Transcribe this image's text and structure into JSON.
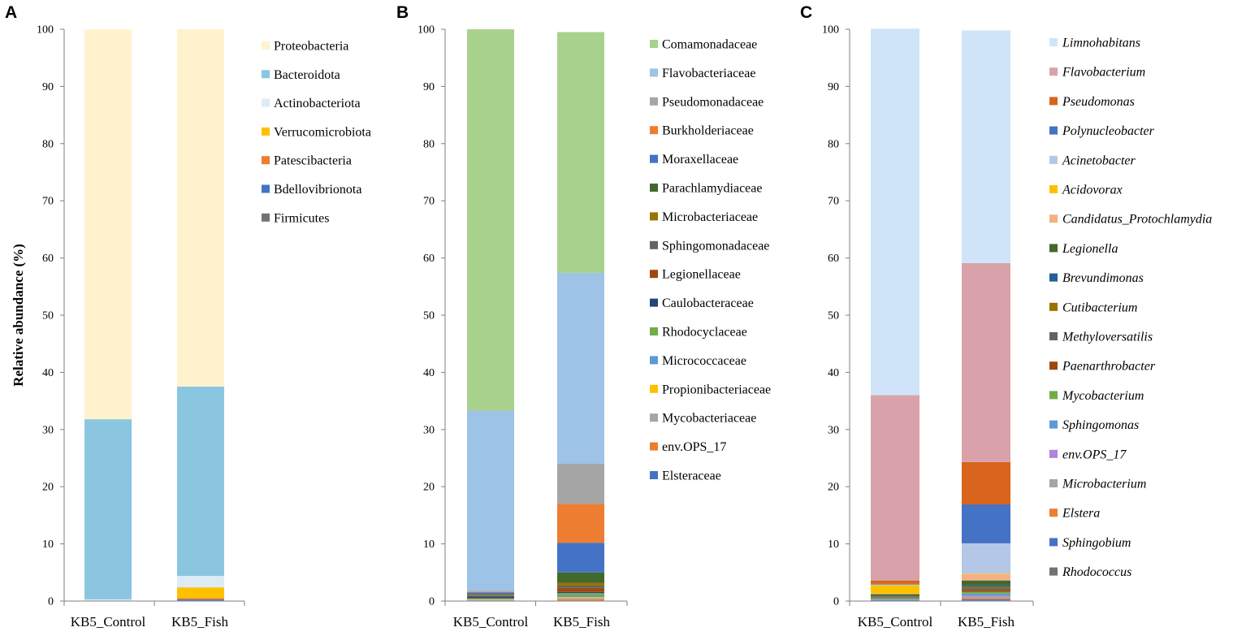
{
  "chart_data": [
    {
      "type": "bar",
      "stacked": true,
      "panel_letter": "A",
      "ylabel": "Relative abundance (%)",
      "ylim": [
        0,
        100
      ],
      "yticks": [
        "0",
        "10",
        "20",
        "30",
        "40",
        "50",
        "60",
        "70",
        "80",
        "90",
        "100"
      ],
      "categories": [
        "KB5_Control",
        "KB5_Fish"
      ],
      "legend_italic": false,
      "series": [
        {
          "name": "Firmicutes",
          "color": "#737373",
          "values": [
            0.0,
            0.1
          ]
        },
        {
          "name": "Bdellovibrionota",
          "color": "#4472c4",
          "values": [
            0.0,
            0.2
          ]
        },
        {
          "name": "Patescibacteria",
          "color": "#ed7d31",
          "values": [
            0.0,
            0.2
          ]
        },
        {
          "name": "Verrucomicrobiota",
          "color": "#ffc000",
          "values": [
            0.0,
            1.9
          ]
        },
        {
          "name": "Actinobacteriota",
          "color": "#ddebf7",
          "values": [
            0.3,
            2.0
          ]
        },
        {
          "name": "Bacteroidota",
          "color": "#8ac6e0",
          "values": [
            31.5,
            33.1
          ]
        },
        {
          "name": "Proteobacteria",
          "color": "#fff2cc",
          "values": [
            68.2,
            62.5
          ]
        }
      ]
    },
    {
      "type": "bar",
      "stacked": true,
      "panel_letter": "B",
      "ylim": [
        0,
        100
      ],
      "yticks": [
        "0",
        "10",
        "20",
        "30",
        "40",
        "50",
        "60",
        "70",
        "80",
        "90",
        "100"
      ],
      "categories": [
        "KB5_Control",
        "KB5_Fish"
      ],
      "legend_italic": false,
      "series": [
        {
          "name": "Elsteraceae",
          "color": "#4472c4",
          "values": [
            0.1,
            0.1
          ]
        },
        {
          "name": "env.OPS_17",
          "color": "#ed7d31",
          "values": [
            0.0,
            0.2
          ]
        },
        {
          "name": "Mycobacteriaceae",
          "color": "#a5a5a5",
          "values": [
            0.1,
            0.2
          ]
        },
        {
          "name": "Propionibacteriaceae",
          "color": "#ffc000",
          "values": [
            0.1,
            0.2
          ]
        },
        {
          "name": "Micrococcaceae",
          "color": "#5b9bd5",
          "values": [
            0.1,
            0.3
          ]
        },
        {
          "name": "Rhodocyclaceae",
          "color": "#70ad47",
          "values": [
            0.1,
            0.4
          ]
        },
        {
          "name": "Caulobacteraceae",
          "color": "#264478",
          "values": [
            0.3,
            0.2
          ]
        },
        {
          "name": "Legionellaceae",
          "color": "#9e480e",
          "values": [
            0.1,
            0.7
          ]
        },
        {
          "name": "Sphingomonadaceae",
          "color": "#636363",
          "values": [
            0.1,
            0.4
          ]
        },
        {
          "name": "Microbacteriaceae",
          "color": "#997300",
          "values": [
            0.1,
            0.5
          ]
        },
        {
          "name": "Parachlamydiaceae",
          "color": "#43682b",
          "values": [
            0.1,
            1.8
          ]
        },
        {
          "name": "Moraxellaceae",
          "color": "#4472c4",
          "values": [
            0.3,
            5.2
          ]
        },
        {
          "name": "Burkholderiaceae",
          "color": "#ed7d31",
          "values": [
            0.1,
            6.8
          ]
        },
        {
          "name": "Pseudomonadaceae",
          "color": "#a5a5a5",
          "values": [
            0.2,
            7.0
          ]
        },
        {
          "name": "Flavobacteriaceae",
          "color": "#9dc3e6",
          "values": [
            31.5,
            33.4
          ]
        },
        {
          "name": "Comamonadaceae",
          "color": "#a9d18e",
          "values": [
            66.7,
            42.1
          ]
        }
      ]
    },
    {
      "type": "bar",
      "stacked": true,
      "panel_letter": "C",
      "ylim": [
        0,
        100
      ],
      "yticks": [
        "0",
        "10",
        "20",
        "30",
        "40",
        "50",
        "60",
        "70",
        "80",
        "90",
        "100"
      ],
      "categories": [
        "KB5_Control",
        "KB5_Fish"
      ],
      "legend_italic": true,
      "series": [
        {
          "name": "Rhodococcus",
          "color": "#737373",
          "values": [
            0.1,
            0.1
          ]
        },
        {
          "name": "Sphingobium",
          "color": "#4472c4",
          "values": [
            0.1,
            0.2
          ]
        },
        {
          "name": "Elstera",
          "color": "#ed7d31",
          "values": [
            0.0,
            0.2
          ]
        },
        {
          "name": "Microbacterium",
          "color": "#a5a5a5",
          "values": [
            0.1,
            0.3
          ]
        },
        {
          "name": "env.OPS_17",
          "color": "#b084d6",
          "values": [
            0.0,
            0.2
          ]
        },
        {
          "name": "Sphingomonas",
          "color": "#5b9bd5",
          "values": [
            0.1,
            0.3
          ]
        },
        {
          "name": "Mycobacterium",
          "color": "#70ad47",
          "values": [
            0.1,
            0.3
          ]
        },
        {
          "name": "Paenarthrobacter",
          "color": "#9e480e",
          "values": [
            0.1,
            0.3
          ]
        },
        {
          "name": "Methyloversatilis",
          "color": "#636363",
          "values": [
            0.1,
            0.3
          ]
        },
        {
          "name": "Cutibacterium",
          "color": "#997300",
          "values": [
            0.1,
            0.3
          ]
        },
        {
          "name": "Brevundimonas",
          "color": "#255e91",
          "values": [
            0.1,
            0.3
          ]
        },
        {
          "name": "Legionella",
          "color": "#43682b",
          "values": [
            0.3,
            0.8
          ]
        },
        {
          "name": "Candidatus_Protochlamydia",
          "color": "#f4b183",
          "values": [
            0.1,
            1.1
          ]
        },
        {
          "name": "Acidovorax",
          "color": "#ffc000",
          "values": [
            1.5,
            0.1
          ]
        },
        {
          "name": "Acinetobacter",
          "color": "#b4c7e7",
          "values": [
            0.1,
            5.3
          ]
        },
        {
          "name": "Polynucleobacter",
          "color": "#4472c4",
          "values": [
            0.1,
            6.8
          ]
        },
        {
          "name": "Pseudomonas",
          "color": "#d9641c",
          "values": [
            0.6,
            7.4
          ]
        },
        {
          "name": "Flavobacterium",
          "color": "#d9a2aa",
          "values": [
            32.4,
            34.8
          ]
        },
        {
          "name": "Limnohabitans",
          "color": "#cfe4f8",
          "values": [
            64.1,
            40.7
          ]
        }
      ]
    }
  ]
}
